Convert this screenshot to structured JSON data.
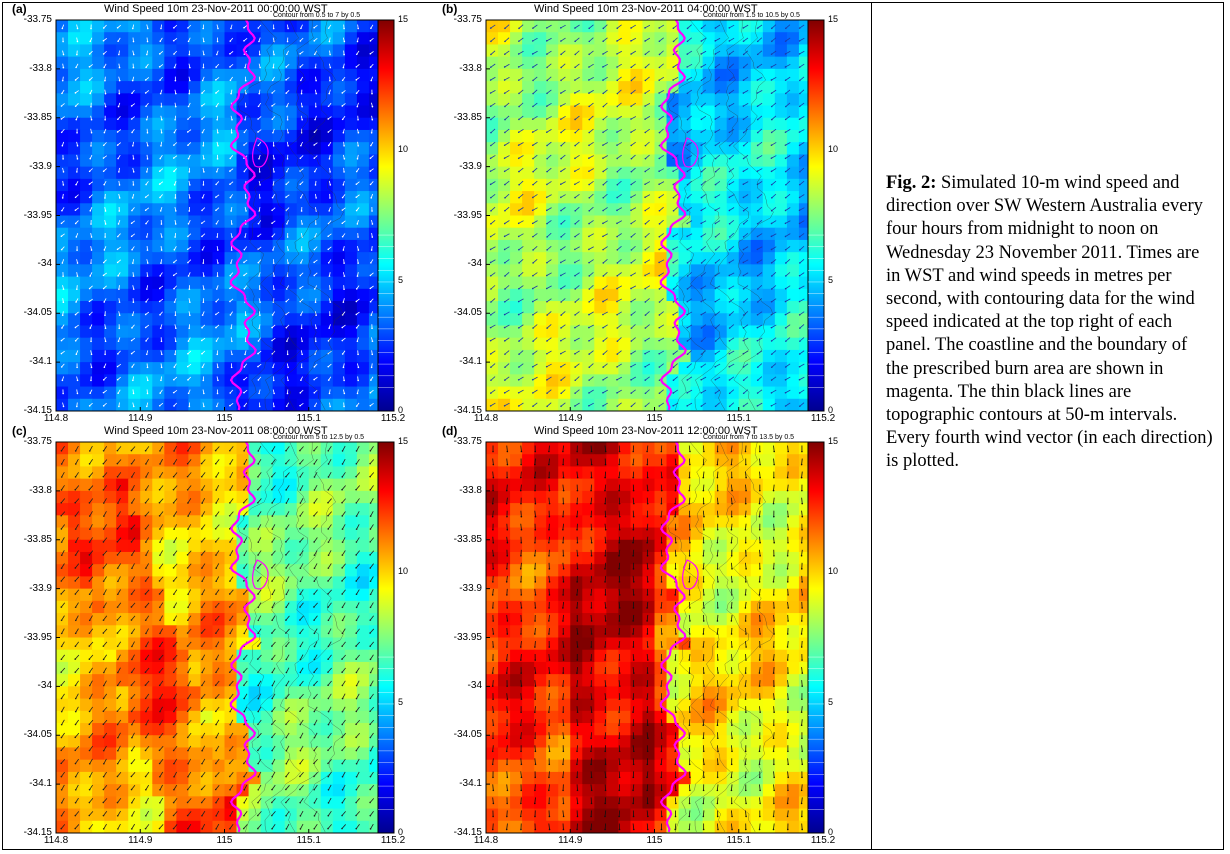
{
  "figure": {
    "panels": [
      {
        "label": "(a)",
        "title": "Wind Speed 10m 23-Nov-2011 00:00:00 WST",
        "contour_note": "Contour from 0.5 to 7 by 0.5",
        "time": "00:00",
        "yticks": [
          "-33.75",
          "-33.8",
          "-33.85",
          "-33.9",
          "-33.95",
          "-34",
          "-34.05",
          "-34.1",
          "-34.15"
        ],
        "xticks": [
          "114.8",
          "114.9",
          "115",
          "115.1",
          "115.2"
        ],
        "cbar_ticks": [
          "15",
          "10",
          "5",
          "0"
        ],
        "sea_speed": 3.5,
        "land_speed": 2.8,
        "vector_color": "#ffffff",
        "vector_angle": 250
      },
      {
        "label": "(b)",
        "title": "Wind Speed 10m 23-Nov-2011 04:00:00 WST",
        "contour_note": "Contour from 1.5 to 10.5 by 0.5",
        "time": "04:00",
        "yticks": [
          "-33.75",
          "-33.8",
          "-33.85",
          "-33.9",
          "-33.95",
          "-34",
          "-34.05",
          "-34.1",
          "-34.15"
        ],
        "xticks": [
          "114.8",
          "114.9",
          "115",
          "115.1",
          "115.2"
        ],
        "cbar_ticks": [
          "15",
          "10",
          "5",
          "0"
        ],
        "sea_speed": 8.3,
        "land_speed": 5.2,
        "vector_color": "#1b3aa8",
        "vector_angle": 215
      },
      {
        "label": "(c)",
        "title": "Wind Speed 10m 23-Nov-2011 08:00:00 WST",
        "contour_note": "Contour from 5 to 12.5 by 0.5",
        "time": "08:00",
        "yticks": [
          "-33.75",
          "-33.8",
          "-33.85",
          "-33.9",
          "-33.95",
          "-34",
          "-34.05",
          "-34.1",
          "-34.15"
        ],
        "xticks": [
          "114.8",
          "114.9",
          "115",
          "115.1",
          "115.2"
        ],
        "cbar_ticks": [
          "15",
          "10",
          "5",
          "0"
        ],
        "sea_speed": 10.5,
        "land_speed": 7.0,
        "vector_color": "#202020",
        "vector_angle": 235
      },
      {
        "label": "(d)",
        "title": "Wind Speed 10m 23-Nov-2011 12:00:00 WST",
        "contour_note": "Contour from 7 to 13.5 by 0.5",
        "time": "12:00",
        "yticks": [
          "-33.75",
          "-33.8",
          "-33.85",
          "-33.9",
          "-33.95",
          "-34",
          "-34.05",
          "-34.1",
          "-34.15"
        ],
        "xticks": [
          "114.8",
          "114.9",
          "115",
          "115.1",
          "115.2"
        ],
        "cbar_ticks": [
          "15",
          "10",
          "5",
          "0"
        ],
        "sea_speed": 12.5,
        "land_speed": 9.5,
        "vector_color": "#101010",
        "vector_angle": 270
      }
    ],
    "colorbar": {
      "min": 0,
      "max": 15,
      "colors": [
        "#00008f",
        "#0000ff",
        "#0080ff",
        "#00ffff",
        "#80ff80",
        "#ffff00",
        "#ff8000",
        "#ff0000",
        "#800000"
      ]
    },
    "coastline_color": "#ff00ff"
  },
  "caption": {
    "label": "Fig. 2:",
    "text": " Simulated 10-m wind speed and direction over SW Western Australia every four hours from midnight to noon on Wednesday 23 November 2011. Times are in WST and wind speeds in metres per second, with contouring data for the wind speed indicated at the top right of each panel. The coastline and the boundary of the prescribed burn area are shown in magenta. The thin black lines are topographic contours at 50-m intervals. Every fourth wind vector (in each direction) is plotted."
  }
}
